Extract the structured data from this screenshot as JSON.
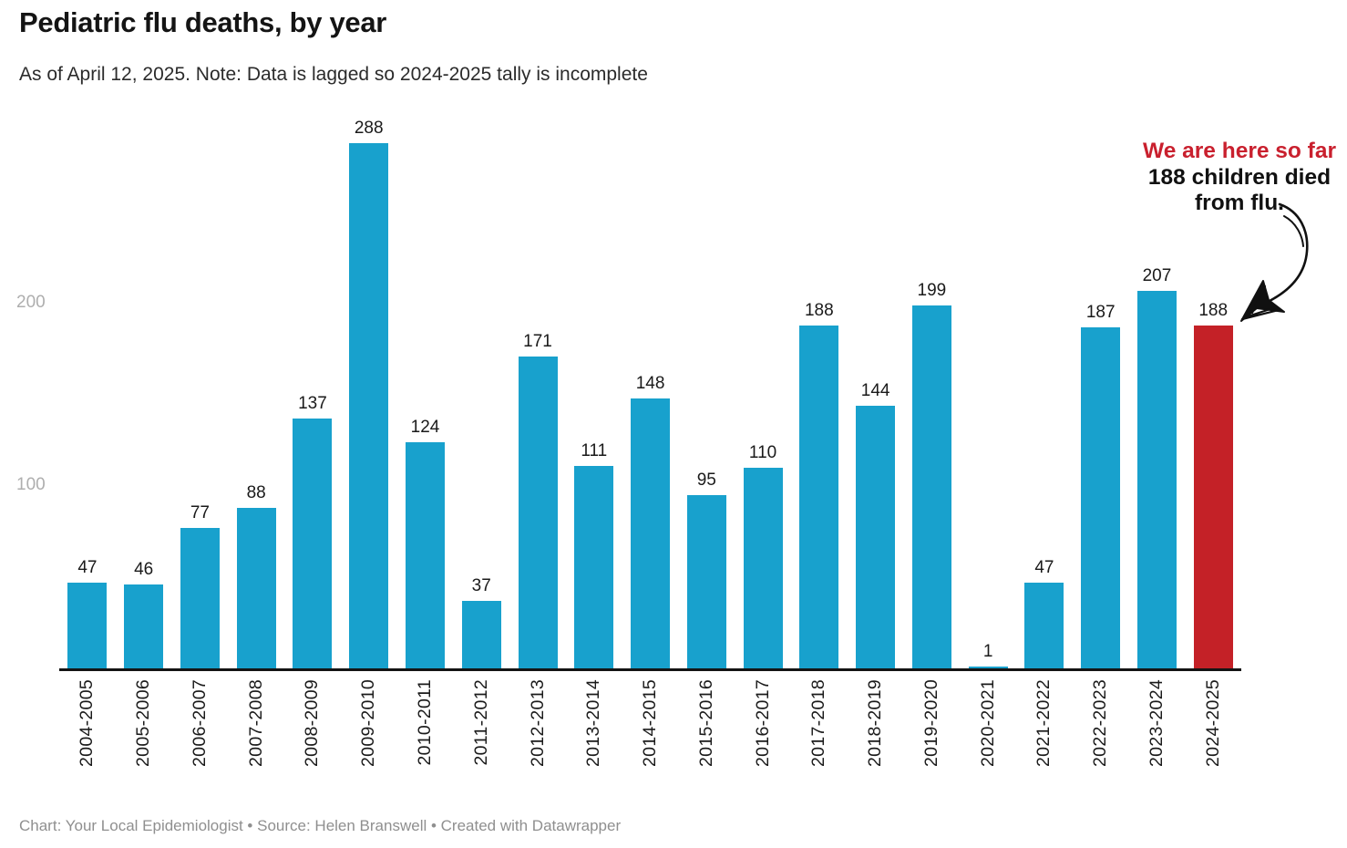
{
  "header": {
    "title": "Pediatric flu deaths, by year",
    "subtitle": "As of April 12, 2025. Note: Data is lagged so 2024-2025 tally is incomplete"
  },
  "chart_data": {
    "type": "bar",
    "title": "Pediatric flu deaths, by year",
    "xlabel": "",
    "ylabel": "",
    "categories": [
      "2004-2005",
      "2005-2006",
      "2006-2007",
      "2007-2008",
      "2008-2009",
      "2009-2010",
      "2010-2011",
      "2011-2012",
      "2012-2013",
      "2013-2014",
      "2014-2015",
      "2015-2016",
      "2016-2017",
      "2017-2018",
      "2018-2019",
      "2019-2020",
      "2020-2021",
      "2021-2022",
      "2022-2023",
      "2023-2024",
      "2024-2025"
    ],
    "values": [
      47,
      46,
      77,
      88,
      137,
      288,
      124,
      37,
      171,
      111,
      148,
      95,
      110,
      188,
      144,
      199,
      1,
      47,
      187,
      207,
      188
    ],
    "highlight_index": 20,
    "bar_color": "#18a1cd",
    "highlight_color": "#c42127",
    "y_ticks": [
      100,
      200
    ],
    "ylim": [
      0,
      310
    ],
    "grid": false,
    "value_labels": true,
    "x_tick_rotation": 90,
    "legend": "none"
  },
  "annotation": {
    "line1": "We are here so far",
    "line2": "188 children died",
    "line3": "from flu.",
    "accent_color": "#c9202e"
  },
  "footer": {
    "text": "Chart: Your Local Epidemiologist • Source: Helen Branswell • Created with Datawrapper"
  }
}
